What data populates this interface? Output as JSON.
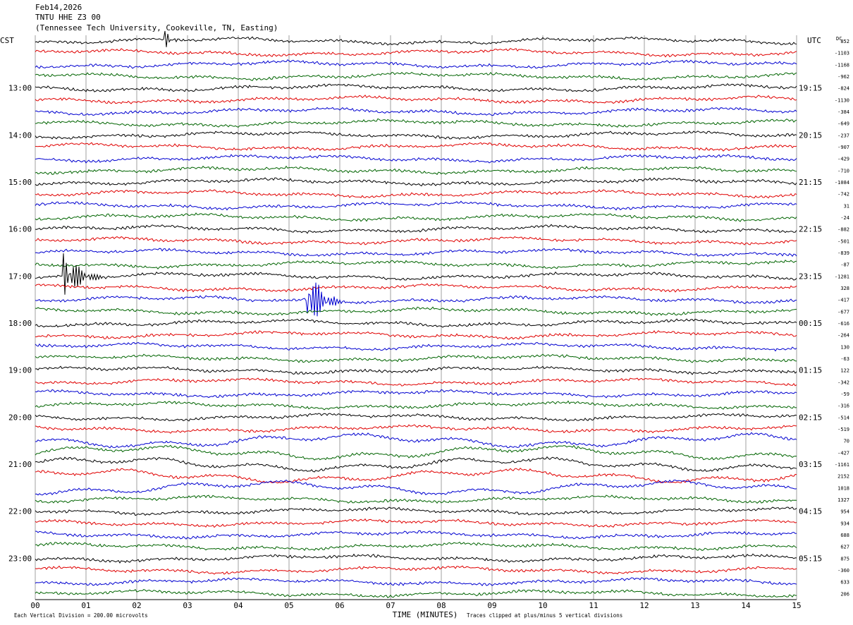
{
  "header": {
    "date": "Feb14,2026",
    "station": "TNTU HHE Z3 00",
    "location": "(Tennessee Tech University, Cookeville, TN, Easting)"
  },
  "footer": {
    "scale_note": "Each Vertical Division =  200.00 microvolts",
    "clip_note": "Traces clipped at plus/minus 5 vertical divisions"
  },
  "chart_data": {
    "type": "line",
    "title": "",
    "xlabel": "TIME (MINUTES)",
    "x_ticks": [
      "00",
      "01",
      "02",
      "03",
      "04",
      "05",
      "06",
      "07",
      "08",
      "09",
      "10",
      "11",
      "12",
      "13",
      "14",
      "15"
    ],
    "xlim": [
      0,
      15
    ],
    "left_axis_label": "CST",
    "right_axis_label": "UTC",
    "dc_label": "DC",
    "left_hour_labels": [
      "13:00",
      "14:00",
      "15:00",
      "16:00",
      "17:00",
      "18:00",
      "19:00",
      "20:00",
      "21:00",
      "22:00",
      "23:00"
    ],
    "right_hour_labels": [
      "19:15",
      "20:15",
      "21:15",
      "22:15",
      "23:15",
      "00:15",
      "01:15",
      "02:15",
      "03:15",
      "04:15",
      "05:15"
    ],
    "trace_colors": [
      "#000000",
      "#e00000",
      "#0000d0",
      "#006400"
    ],
    "dc_offsets": [
      "852",
      "-1103",
      "-1168",
      "-962",
      "-824",
      "-1130",
      "-384",
      "-649",
      "-237",
      "-907",
      "-429",
      "-710",
      "-1084",
      "-742",
      "31",
      "-24",
      "-882",
      "-501",
      "-839",
      "-87",
      "-1281",
      "328",
      "-417",
      "-677",
      "-616",
      "-264",
      "130",
      "-63",
      "122",
      "-342",
      "-59",
      "-316",
      "-514",
      "-519",
      "70",
      "-427",
      "-1161",
      "2152",
      "1018",
      "1327",
      "954",
      "934",
      "688",
      "627",
      "875",
      "-360",
      "633",
      "206"
    ],
    "events": [
      {
        "trace": 20,
        "minute": 0.6,
        "amplitude": 3.5,
        "duration_min": 0.8
      },
      {
        "trace": 22,
        "minute": 5.4,
        "amplitude": 4.5,
        "duration_min": 0.7
      },
      {
        "trace": 0,
        "minute": 2.6,
        "amplitude": 1.2,
        "duration_min": 0.2
      }
    ]
  }
}
